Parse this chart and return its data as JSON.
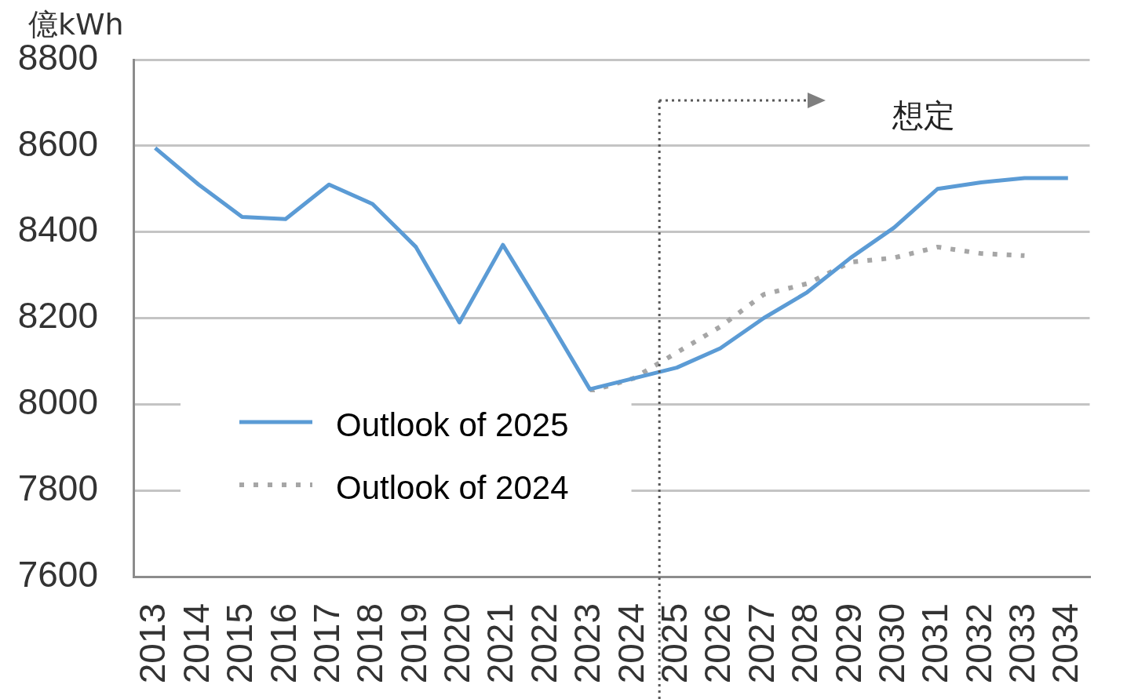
{
  "chart_data": {
    "type": "line",
    "ylabel": "億kWh",
    "x": [
      2013,
      2014,
      2015,
      2016,
      2017,
      2018,
      2019,
      2020,
      2021,
      2022,
      2023,
      2024,
      2025,
      2026,
      2027,
      2028,
      2029,
      2030,
      2031,
      2032,
      2033,
      2034
    ],
    "xlim": [
      2012.5,
      2034.5
    ],
    "xticks": [
      2013,
      2014,
      2015,
      2016,
      2017,
      2018,
      2019,
      2020,
      2021,
      2022,
      2023,
      2024,
      2025,
      2026,
      2027,
      2028,
      2029,
      2030,
      2031,
      2032,
      2033,
      2034
    ],
    "ylim": [
      7600,
      8800
    ],
    "yticks": [
      7600,
      7800,
      8000,
      8200,
      8400,
      8600,
      8800
    ],
    "grid": "y",
    "legend": "bottom left",
    "marker": "none",
    "series": [
      {
        "name": "Outlook of 2025",
        "color": "#5b9bd5",
        "line_style": "solid",
        "values": [
          8595,
          8510,
          8435,
          8430,
          8510,
          8465,
          8365,
          8190,
          8370,
          8205,
          8035,
          8060,
          8085,
          8130,
          8200,
          8260,
          8340,
          8410,
          8500,
          8515,
          8525,
          8525
        ]
      },
      {
        "name": "Outlook of 2024",
        "color": "#a6a6a6",
        "line_style": "dotted",
        "values": [
          null,
          null,
          null,
          null,
          null,
          null,
          null,
          null,
          null,
          null,
          8030,
          8060,
          8120,
          8180,
          8255,
          8280,
          8330,
          8340,
          8365,
          8350,
          8345,
          null
        ]
      }
    ],
    "ref_lines": [
      {
        "axis": "x",
        "value": 2024.6,
        "color": "#595959",
        "line_style": "dotted"
      }
    ],
    "annotations": [
      "想定"
    ]
  }
}
